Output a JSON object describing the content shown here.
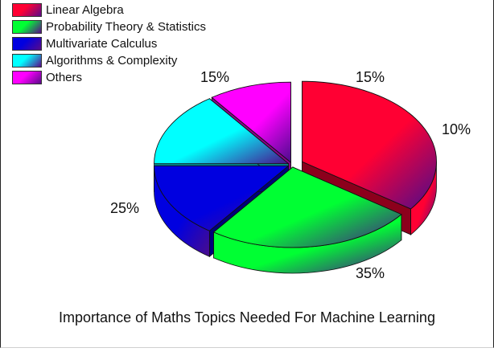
{
  "chart_data": {
    "type": "pie",
    "style": "3d-exploded",
    "title": "Importance of Maths Topics Needed For Machine Learning",
    "legend_position": "top-left",
    "slices": [
      {
        "name": "Linear Algebra",
        "value": 35,
        "label": "35%",
        "color": "#ff0033"
      },
      {
        "name": "Probability Theory & Statistics",
        "value": 25,
        "label": "25%",
        "color": "#00ff33"
      },
      {
        "name": "Multivariate Calculus",
        "value": 15,
        "label": "15%",
        "color": "#0000e0"
      },
      {
        "name": "Algorithms & Complexity",
        "value": 15,
        "label": "15%",
        "color": "#00ffff"
      },
      {
        "name": "Others",
        "value": 10,
        "label": "10%",
        "color": "#ff00ff"
      }
    ]
  }
}
